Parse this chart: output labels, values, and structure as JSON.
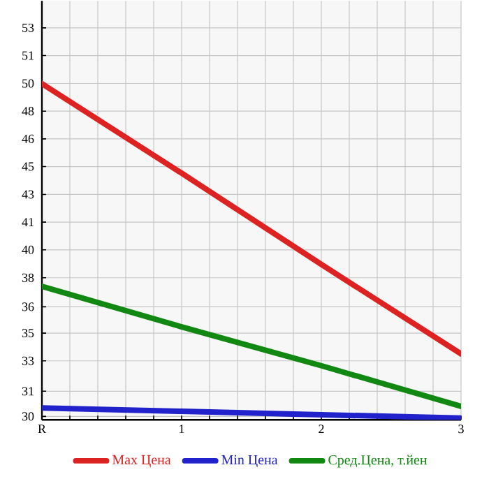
{
  "chart_data": {
    "type": "line",
    "x": [
      0,
      1,
      2,
      3
    ],
    "xlim": [
      0,
      3
    ],
    "xticks": [
      {
        "value": 0,
        "label": "R"
      },
      {
        "value": 0.2,
        "label": null
      },
      {
        "value": 0.4,
        "label": null
      },
      {
        "value": 0.6,
        "label": null
      },
      {
        "value": 0.8,
        "label": null
      },
      1,
      {
        "value": 1.2,
        "label": null
      },
      {
        "value": 1.4,
        "label": null
      },
      {
        "value": 1.6,
        "label": null
      },
      {
        "value": 1.8,
        "label": null
      },
      2,
      {
        "value": 2.2,
        "label": null
      },
      {
        "value": 2.4,
        "label": null
      },
      {
        "value": 2.6,
        "label": null
      },
      {
        "value": 2.8,
        "label": null
      },
      3
    ],
    "ylim": [
      29.8,
      54.6
    ],
    "yticks": [
      {
        "value": 30,
        "label": "30"
      },
      {
        "value": 31.49,
        "label": "31"
      },
      {
        "value": 33.29,
        "label": "33"
      },
      {
        "value": 34.93,
        "label": "35"
      },
      {
        "value": 36.49,
        "label": "36"
      },
      {
        "value": 38.21,
        "label": "38"
      },
      {
        "value": 39.86,
        "label": "40"
      },
      {
        "value": 41.5,
        "label": "41"
      },
      {
        "value": 43.14,
        "label": "43"
      },
      {
        "value": 44.79,
        "label": "45"
      },
      {
        "value": 46.43,
        "label": "46"
      },
      {
        "value": 48.07,
        "label": "48"
      },
      {
        "value": 49.71,
        "label": "50"
      },
      {
        "value": 51.36,
        "label": "51"
      },
      {
        "value": 53,
        "label": "53"
      }
    ],
    "grid": true,
    "legend": "bottom",
    "marker": "none",
    "line_style": "solid",
    "series": [
      {
        "name": "Max Цена",
        "color": "#dd2222",
        "values": [
          49.7,
          44.4,
          39.0,
          33.7
        ]
      },
      {
        "name": "Min Цена",
        "color": "#2222cc",
        "values": [
          30.5,
          30.3,
          30.1,
          29.9
        ]
      },
      {
        "name": "Сред.Цена, т.йен",
        "color": "#118811",
        "values": [
          37.7,
          35.3,
          33.0,
          30.6
        ]
      }
    ]
  }
}
